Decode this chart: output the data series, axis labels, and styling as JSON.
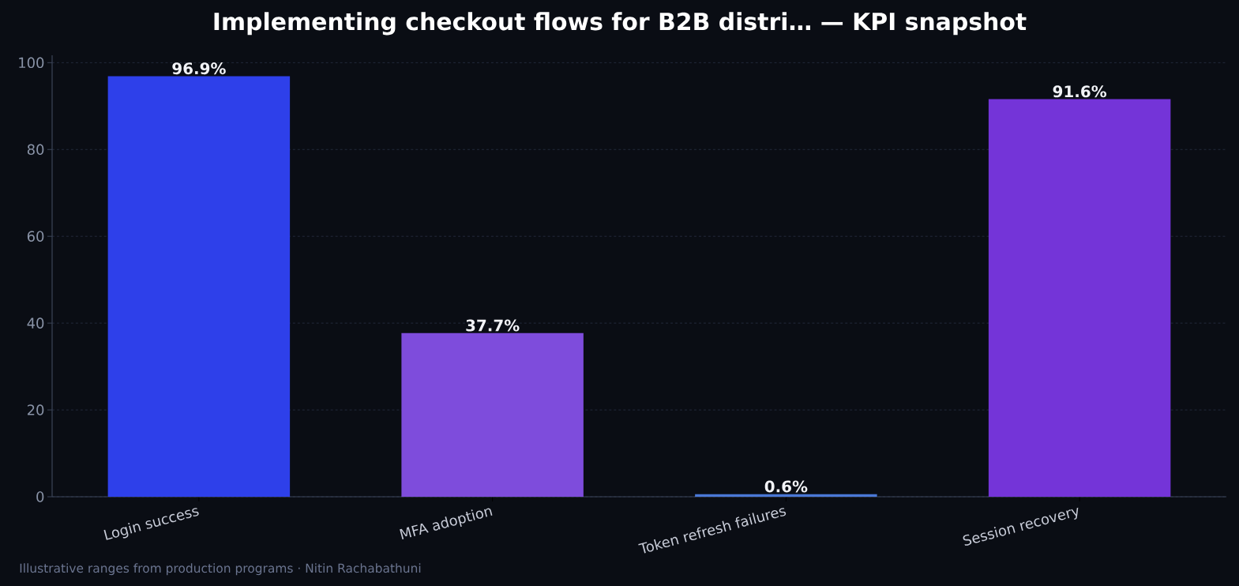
{
  "chart_data": {
    "type": "bar",
    "title": "Implementing checkout flows for B2B distri… — KPI snapshot",
    "categories": [
      "Login success",
      "MFA adoption",
      "Token refresh failures",
      "Session recovery"
    ],
    "values": [
      96.9,
      37.7,
      0.6,
      91.6
    ],
    "colors": [
      "#2e40ea",
      "#7e4cdc",
      "#4a78d6",
      "#7434d8"
    ],
    "value_labels": [
      "96.9%",
      "37.7%",
      "0.6%",
      "91.6%"
    ],
    "ylim": [
      0,
      101.7
    ],
    "yticks": [
      0,
      20,
      40,
      60,
      80,
      100
    ],
    "grid": "y",
    "annotations": [
      "Illustrative ranges from production programs · Nitin Rachabathuni"
    ]
  }
}
